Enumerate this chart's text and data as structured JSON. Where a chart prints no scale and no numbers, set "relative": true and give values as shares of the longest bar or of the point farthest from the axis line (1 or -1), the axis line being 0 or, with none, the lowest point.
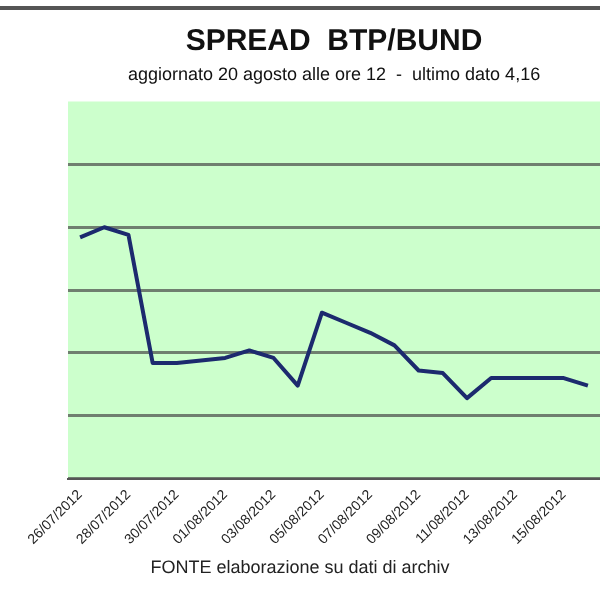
{
  "chart_data": {
    "type": "line",
    "title": "SPREAD  BTP/BUND",
    "subtitle": "aggiornato 20 agosto alle ore 12  -  ultimo dato 4,16",
    "categories": [
      "26/07/2012",
      null,
      "28/07/2012",
      null,
      "30/07/2012",
      null,
      "01/08/2012",
      null,
      "03/08/2012",
      null,
      "05/08/2012",
      null,
      "07/08/2012",
      null,
      "09/08/2012",
      null,
      "11/08/2012",
      null,
      "13/08/2012",
      null,
      "15/08/2012",
      null
    ],
    "values": [
      0.96,
      1,
      0.97,
      0.46,
      0.46,
      0.47,
      0.48,
      0.51,
      0.48,
      0.37,
      0.66,
      0.62,
      0.58,
      0.53,
      0.43,
      0.42,
      0.32,
      0.4,
      0.4,
      0.4,
      0.4,
      0.37
    ],
    "color": "#1c2a6e",
    "relative": true,
    "grid": "y",
    "marker": "none",
    "line_style": "solid",
    "annotations": [
      "FONTE elaborazione su dati di archiv"
    ]
  }
}
